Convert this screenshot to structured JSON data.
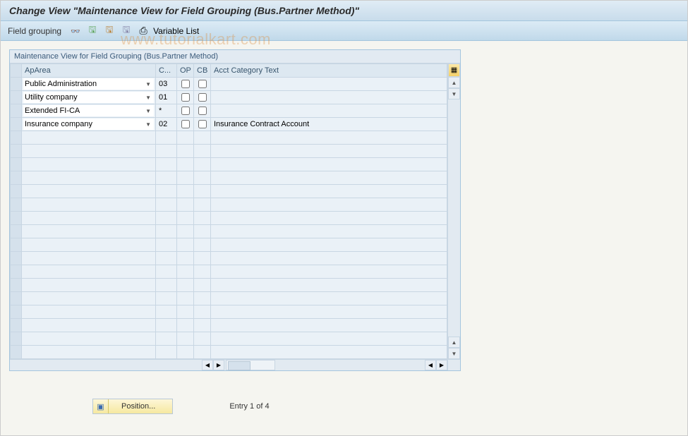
{
  "title": "Change View \"Maintenance View for Field Grouping (Bus.Partner Method)\"",
  "toolbar": {
    "label": "Field grouping",
    "var_list": "Variable List"
  },
  "panel": {
    "title": "Maintenance View for Field Grouping (Bus.Partner Method)",
    "columns": {
      "ap": "ApArea",
      "c": "C...",
      "op": "OP",
      "cb": "CB",
      "acct": "Acct Category Text"
    },
    "rows": [
      {
        "ap": "Public Administration",
        "c": "03",
        "op": false,
        "cb": false,
        "acct": ""
      },
      {
        "ap": "Utility company",
        "c": "01",
        "op": false,
        "cb": false,
        "acct": ""
      },
      {
        "ap": "Extended FI-CA",
        "c": "*",
        "op": false,
        "cb": false,
        "acct": ""
      },
      {
        "ap": "Insurance company",
        "c": "02",
        "op": false,
        "cb": false,
        "acct": "Insurance Contract Account"
      }
    ],
    "empty_rows": 17
  },
  "footer": {
    "position_btn": "Position...",
    "entry_text": "Entry 1 of 4"
  },
  "watermark": "www.tutorialkart.com",
  "colors": {
    "header_bg": "#dcebf5",
    "panel_border": "#a4c5de",
    "row_alt": "#eef3f8"
  }
}
